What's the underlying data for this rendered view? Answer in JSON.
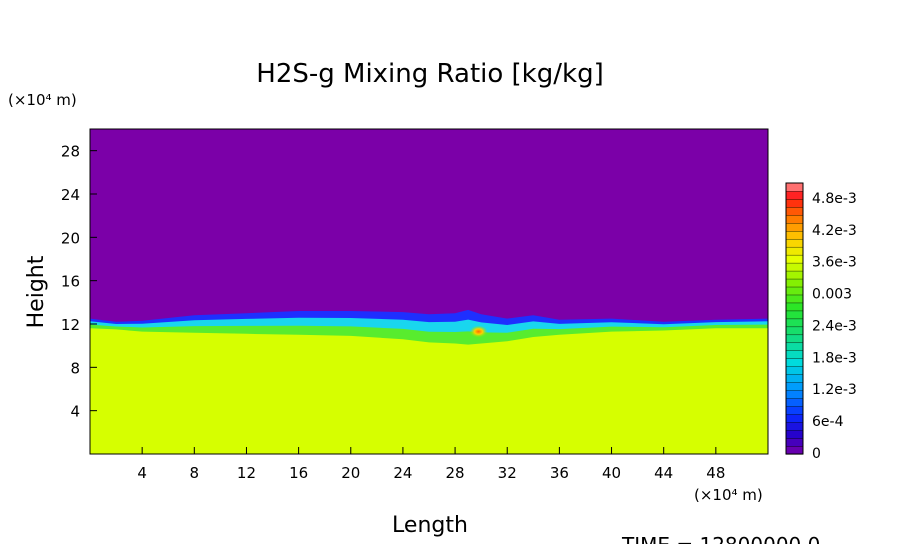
{
  "chart_data": {
    "type": "heatmap",
    "title": "H2S-g Mixing Ratio [kg/kg]",
    "xlabel": "Length",
    "ylabel": "Height",
    "x_unit": "(×10⁴ m)",
    "y_unit": "(×10⁴ m)",
    "xlim": [
      0,
      52
    ],
    "ylim": [
      0,
      30
    ],
    "x_ticks": [
      4,
      8,
      12,
      16,
      20,
      24,
      28,
      32,
      36,
      40,
      44,
      48
    ],
    "y_ticks": [
      4,
      8,
      12,
      16,
      20,
      24,
      28
    ],
    "colorbar": {
      "min": 0,
      "max": 0.0051,
      "tick_values": [
        0,
        0.0006,
        0.0012,
        0.0018,
        0.0024,
        0.003,
        0.0036,
        0.0042,
        0.0048
      ],
      "tick_labels": [
        "0",
        "6e-4",
        "1.2e-3",
        "1.8e-3",
        "2.4e-3",
        "0.003",
        "3.6e-3",
        "4.2e-3",
        "4.8e-3"
      ]
    },
    "fields": {
      "lower_layer_value": 0.0036,
      "upper_layer_value": 0,
      "transition_height_profile": {
        "x": [
          0,
          2,
          4,
          8,
          12,
          16,
          20,
          24,
          26,
          28,
          29,
          30,
          32,
          34,
          36,
          40,
          44,
          48,
          52
        ],
        "top": [
          12.5,
          12.2,
          12.3,
          12.8,
          13.0,
          13.2,
          13.2,
          13.1,
          12.9,
          13.0,
          13.3,
          12.9,
          12.5,
          12.8,
          12.4,
          12.5,
          12.2,
          12.4,
          12.5
        ],
        "green_bottom": [
          11.6,
          11.5,
          11.3,
          11.2,
          11.1,
          11.0,
          10.9,
          10.6,
          10.3,
          10.2,
          10.1,
          10.2,
          10.4,
          10.8,
          11.0,
          11.3,
          11.4,
          11.6,
          11.6
        ]
      },
      "hotspot": {
        "x": 29.8,
        "y": 11.3,
        "value": 0.0045
      }
    },
    "time_label": "TIME = 12800000.0"
  }
}
